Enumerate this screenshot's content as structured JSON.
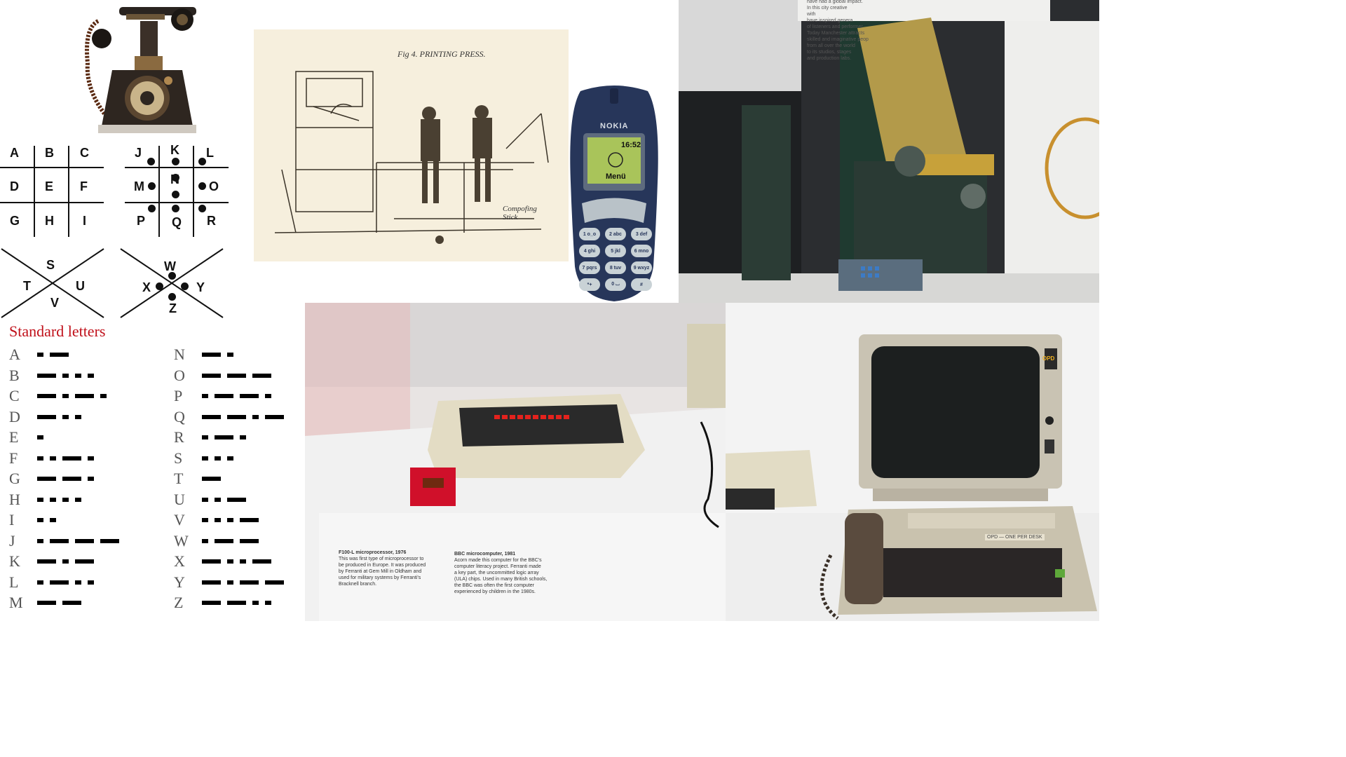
{
  "pigpen": {
    "grid1": [
      "A",
      "B",
      "C",
      "D",
      "E",
      "F",
      "G",
      "H",
      "I"
    ],
    "grid2": [
      "J",
      "K",
      "L",
      "M",
      "N",
      "O",
      "P",
      "Q",
      "R"
    ],
    "x1": [
      "S",
      "T",
      "U",
      "V"
    ],
    "x2": [
      "W",
      "X",
      "Y",
      "Z"
    ]
  },
  "morse": {
    "title": "Standard letters",
    "left": [
      {
        "letter": "A",
        "code": ".-"
      },
      {
        "letter": "B",
        "code": "-..."
      },
      {
        "letter": "C",
        "code": "-.-."
      },
      {
        "letter": "D",
        "code": "-.."
      },
      {
        "letter": "E",
        "code": "."
      },
      {
        "letter": "F",
        "code": "..-."
      },
      {
        "letter": "G",
        "code": "--."
      },
      {
        "letter": "H",
        "code": "...."
      },
      {
        "letter": "I",
        "code": ".."
      },
      {
        "letter": "J",
        "code": ".---"
      },
      {
        "letter": "K",
        "code": "-.-"
      },
      {
        "letter": "L",
        "code": ".-.."
      },
      {
        "letter": "M",
        "code": "--"
      }
    ],
    "right": [
      {
        "letter": "N",
        "code": "-."
      },
      {
        "letter": "O",
        "code": "---"
      },
      {
        "letter": "P",
        "code": ".--."
      },
      {
        "letter": "Q",
        "code": "--.-"
      },
      {
        "letter": "R",
        "code": ".-."
      },
      {
        "letter": "S",
        "code": "..."
      },
      {
        "letter": "T",
        "code": "-"
      },
      {
        "letter": "U",
        "code": "..-"
      },
      {
        "letter": "V",
        "code": "...-"
      },
      {
        "letter": "W",
        "code": ".--"
      },
      {
        "letter": "X",
        "code": "-..-"
      },
      {
        "letter": "Y",
        "code": "-.--"
      },
      {
        "letter": "Z",
        "code": "--.."
      }
    ]
  },
  "press": {
    "caption": "Fig 4. PRINTING PRESS.",
    "label": "Compofing Stick"
  },
  "nokia": {
    "brand": "NOKIA",
    "time": "16:52",
    "menu": "Menü",
    "keys": [
      "1 o_o",
      "2 abc",
      "3 def",
      "4 ghi",
      "5 jkl",
      "6 mno",
      "7 pqrs",
      "8 tuv",
      "9 wxyz",
      "*+",
      "0 ⌴",
      "#"
    ]
  },
  "lino": {
    "wall_text": [
      "have had a global impact.",
      "In this city creative",
      "with",
      "have inspired genera",
      "of listeners and performer",
      "Today Manchester attracts",
      "skilled and imaginative peop",
      "from all over the world",
      "to its studios, stages",
      "and production labs."
    ]
  },
  "bbc": {
    "caption1_title": "F100-L microprocessor, 1976",
    "caption1_body": [
      "This was first type of microprocessor to",
      "be produced in Europe. It was produced",
      "by Ferranti at Gem Mill in Oldham and",
      "used for military systems by Ferranti's",
      "Bracknell branch."
    ],
    "caption2_title": "BBC microcomputer, 1981",
    "caption2_body": [
      "Acorn made this computer for the BBC's",
      "computer literacy project. Ferranti made",
      "a key part, the uncommitted logic array",
      "(ULA) chips. Used in many British schools,",
      "the BBC was often the first computer",
      "experienced by children in the 1980s."
    ]
  },
  "opd": {
    "badge": "OPD",
    "label": "OPD — ONE PER DESK"
  }
}
